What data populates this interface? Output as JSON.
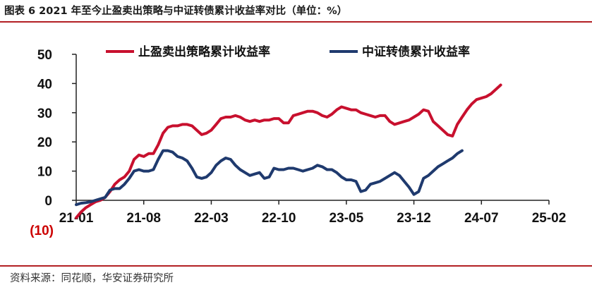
{
  "title": "图表 6  2021 年至今止盈卖出策略与中证转债累计收益率对比（单位：%）",
  "source": "资料来源：同花顺，华安证券研究所",
  "colors": {
    "accent": "#b32024",
    "red": "#c8102e",
    "blue": "#1f3a6e",
    "negative": "#cc0000"
  },
  "chart_data": {
    "type": "line",
    "title": "",
    "xlabel": "",
    "ylabel": "",
    "ylim": [
      -10,
      50
    ],
    "yticks": [
      "50",
      "40",
      "30",
      "20",
      "10",
      "0",
      "(10)"
    ],
    "ytick_values": [
      50,
      40,
      30,
      20,
      10,
      0,
      -10
    ],
    "xticks": [
      "21-01",
      "21-08",
      "22-03",
      "22-10",
      "23-05",
      "23-12",
      "24-07",
      "25-02"
    ],
    "xtick_positions": [
      0,
      7,
      14,
      21,
      28,
      35,
      42,
      49
    ],
    "legend_position": "top",
    "grid": false,
    "series": [
      {
        "name": "止盈卖出策略累计收益率",
        "color": "#c8102e",
        "points": [
          [
            0,
            -6
          ],
          [
            0.5,
            -4
          ],
          [
            1,
            -2.5
          ],
          [
            1.5,
            -1.5
          ],
          [
            2,
            -0.5
          ],
          [
            2.5,
            0
          ],
          [
            3,
            1
          ],
          [
            3.5,
            3
          ],
          [
            4,
            5.5
          ],
          [
            4.5,
            7
          ],
          [
            5,
            8
          ],
          [
            5.5,
            10
          ],
          [
            6,
            14
          ],
          [
            6.5,
            15.5
          ],
          [
            7,
            15
          ],
          [
            7.5,
            16
          ],
          [
            8,
            16
          ],
          [
            8.5,
            19
          ],
          [
            9,
            23
          ],
          [
            9.5,
            25
          ],
          [
            10,
            25.5
          ],
          [
            10.5,
            25.5
          ],
          [
            11,
            26
          ],
          [
            11.5,
            26
          ],
          [
            12,
            25.5
          ],
          [
            12.5,
            24
          ],
          [
            13,
            22.5
          ],
          [
            13.5,
            23
          ],
          [
            14,
            24
          ],
          [
            14.5,
            26
          ],
          [
            15,
            28
          ],
          [
            15.5,
            28.5
          ],
          [
            16,
            28.5
          ],
          [
            16.5,
            29
          ],
          [
            17,
            28.5
          ],
          [
            17.5,
            27.5
          ],
          [
            18,
            27
          ],
          [
            18.5,
            27.5
          ],
          [
            19,
            27
          ],
          [
            19.5,
            27.5
          ],
          [
            20,
            27.5
          ],
          [
            20.5,
            28
          ],
          [
            21,
            28
          ],
          [
            21.5,
            26.5
          ],
          [
            22,
            26.5
          ],
          [
            22.5,
            29
          ],
          [
            23,
            29.5
          ],
          [
            23.5,
            30
          ],
          [
            24,
            30.5
          ],
          [
            24.5,
            30.5
          ],
          [
            25,
            30
          ],
          [
            25.5,
            29
          ],
          [
            26,
            28.5
          ],
          [
            26.5,
            29.5
          ],
          [
            27,
            31
          ],
          [
            27.5,
            32
          ],
          [
            28,
            31.5
          ],
          [
            28.5,
            31
          ],
          [
            29,
            31
          ],
          [
            29.5,
            30
          ],
          [
            30,
            29.5
          ],
          [
            30.5,
            29
          ],
          [
            31,
            28.5
          ],
          [
            31.5,
            29
          ],
          [
            32,
            29
          ],
          [
            32.5,
            27
          ],
          [
            33,
            26
          ],
          [
            33.5,
            26.5
          ],
          [
            34,
            27
          ],
          [
            34.5,
            27.5
          ],
          [
            35,
            28.5
          ],
          [
            35.5,
            29.5
          ],
          [
            36,
            31
          ],
          [
            36.5,
            30.5
          ],
          [
            37,
            27
          ],
          [
            37.5,
            25.5
          ],
          [
            38,
            24
          ],
          [
            38.5,
            22.5
          ],
          [
            39,
            22
          ],
          [
            39.5,
            26
          ],
          [
            40,
            28.5
          ],
          [
            40.5,
            31
          ],
          [
            41,
            33
          ],
          [
            41.5,
            34.5
          ],
          [
            42,
            35
          ],
          [
            42.5,
            35.5
          ],
          [
            43,
            36.5
          ],
          [
            43.5,
            38
          ],
          [
            44,
            39.5
          ]
        ]
      },
      {
        "name": "中证转债累计收益率",
        "color": "#1f3a6e",
        "points": [
          [
            0,
            -1.5
          ],
          [
            0.5,
            -1
          ],
          [
            1,
            -0.8
          ],
          [
            1.5,
            -0.5
          ],
          [
            2,
            0
          ],
          [
            2.5,
            0.5
          ],
          [
            3,
            1
          ],
          [
            3.5,
            3.5
          ],
          [
            4,
            4
          ],
          [
            4.5,
            4
          ],
          [
            5,
            5.5
          ],
          [
            5.5,
            7.5
          ],
          [
            6,
            10
          ],
          [
            6.5,
            10.5
          ],
          [
            7,
            10
          ],
          [
            7.5,
            10
          ],
          [
            8,
            10.5
          ],
          [
            8.5,
            14
          ],
          [
            9,
            17
          ],
          [
            9.5,
            17
          ],
          [
            10,
            16.5
          ],
          [
            10.5,
            15
          ],
          [
            11,
            14.5
          ],
          [
            11.5,
            13.5
          ],
          [
            12,
            11
          ],
          [
            12.5,
            8
          ],
          [
            13,
            7.5
          ],
          [
            13.5,
            8
          ],
          [
            14,
            9.5
          ],
          [
            14.5,
            12
          ],
          [
            15,
            13.5
          ],
          [
            15.5,
            14.5
          ],
          [
            16,
            14
          ],
          [
            16.5,
            12
          ],
          [
            17,
            10.5
          ],
          [
            17.5,
            9.5
          ],
          [
            18,
            8.5
          ],
          [
            18.5,
            9
          ],
          [
            19,
            9.5
          ],
          [
            19.5,
            7.5
          ],
          [
            20,
            8
          ],
          [
            20.5,
            11
          ],
          [
            21,
            10.5
          ],
          [
            21.5,
            10.5
          ],
          [
            22,
            11
          ],
          [
            22.5,
            11
          ],
          [
            23,
            10.5
          ],
          [
            23.5,
            10
          ],
          [
            24,
            10.5
          ],
          [
            24.5,
            11
          ],
          [
            25,
            12
          ],
          [
            25.5,
            11.5
          ],
          [
            26,
            10.5
          ],
          [
            26.5,
            10.5
          ],
          [
            27,
            9.5
          ],
          [
            27.5,
            8
          ],
          [
            28,
            7
          ],
          [
            28.5,
            7
          ],
          [
            29,
            6.5
          ],
          [
            29.5,
            3
          ],
          [
            30,
            3.5
          ],
          [
            30.5,
            5.5
          ],
          [
            31,
            6
          ],
          [
            31.5,
            6.5
          ],
          [
            32,
            7.5
          ],
          [
            32.5,
            8.5
          ],
          [
            33,
            9.5
          ],
          [
            33.5,
            8.5
          ],
          [
            34,
            6.5
          ],
          [
            34.5,
            4.5
          ],
          [
            35,
            2
          ],
          [
            35.5,
            3
          ],
          [
            36,
            7.5
          ],
          [
            36.5,
            8.5
          ],
          [
            37,
            10
          ],
          [
            37.5,
            11.5
          ],
          [
            38,
            12.5
          ],
          [
            38.5,
            13.5
          ],
          [
            39,
            14.5
          ],
          [
            39.5,
            16
          ],
          [
            40,
            17
          ]
        ]
      }
    ]
  }
}
